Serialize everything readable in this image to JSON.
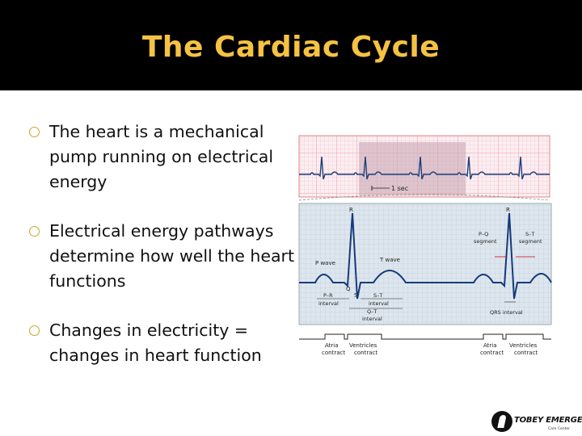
{
  "slide": {
    "title": "The Cardiac Cycle",
    "bullets": [
      "The heart is a mechanical pump running on electrical energy",
      "Electrical energy pathways determine how well the heart functions",
      "Changes in electricity = changes in heart function"
    ]
  },
  "ecg": {
    "strip_label": "1 sec",
    "labels": {
      "r_left": "R",
      "r_right": "R",
      "p_wave": "P wave",
      "t_wave": "T wave",
      "q": "Q",
      "s": "S",
      "pr_interval_1": "P–R",
      "pr_interval_2": "interval",
      "st_interval_1": "S–T",
      "st_interval_2": "interval",
      "qt_interval_1": "Q–T",
      "qt_interval_2": "interval",
      "pq_segment_1": "P–Q",
      "pq_segment_2": "segment",
      "st_segment_1": "S–T",
      "st_segment_2": "segment",
      "qrs_interval": "QRS interval",
      "atria_1_a": "Atria",
      "atria_1_b": "contract",
      "ventricles_1_a": "Ventricles",
      "ventricles_1_b": "contract",
      "atria_2_a": "Atria",
      "atria_2_b": "contract",
      "ventricles_2_a": "Ventricles",
      "ventricles_2_b": "contract"
    }
  },
  "logo": {
    "name": "TOBEY EMERGENCY",
    "sub": "Care Center"
  }
}
